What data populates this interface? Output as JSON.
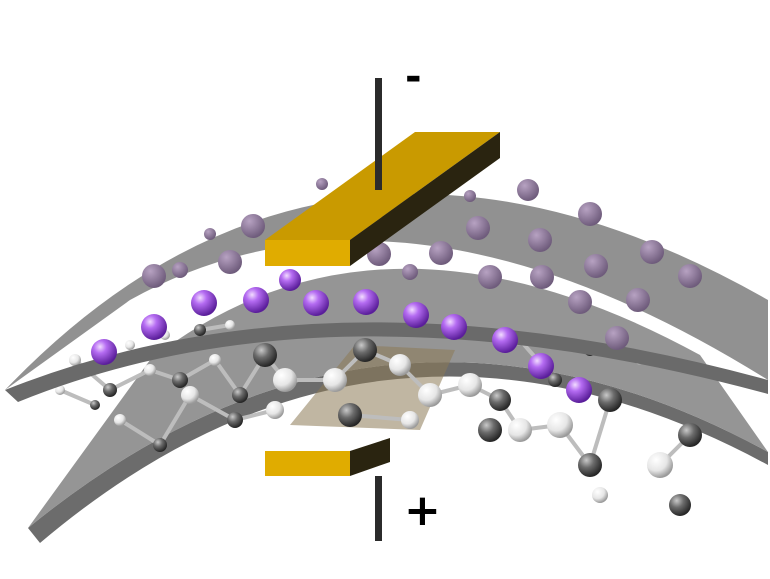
{
  "diagram": {
    "labels": {
      "negative_terminal": "-",
      "positive_terminal": "+"
    },
    "colors": {
      "background": "#ffffff",
      "sheet_top": "#8a8a8a",
      "sheet_side": "#6e6e6e",
      "electrode_top": "#c99a00",
      "electrode_front": "#e0ac00",
      "electrode_dark": "#2a2410",
      "wire": "#2b2b2b",
      "lithium_ion": "#9a4de0",
      "carbon_atom": "#5a5a5a",
      "hydrogen_atom": "#f0f0f0",
      "oxygen_atom": "#3a3a3a"
    },
    "components": [
      "upper-curved-separator-sheet",
      "lower-curved-separator-sheet",
      "top-electrode",
      "bottom-electrode",
      "lithium-ions",
      "polymer-electrolyte-molecules"
    ]
  }
}
